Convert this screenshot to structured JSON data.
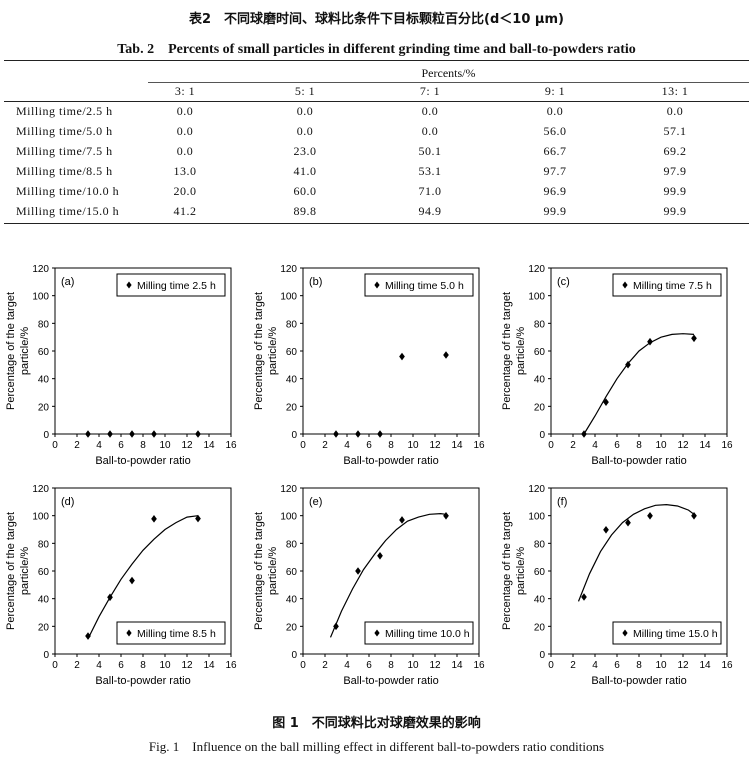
{
  "table": {
    "caption_cn": "表2　不同球磨时间、球料比条件下目标颗粒百分比(d＜10 μm)",
    "caption_en": "Tab. 2　Percents of small particles in different grinding time and ball-to-powders ratio",
    "group_header": "Percents/%",
    "columns": [
      "3: 1",
      "5: 1",
      "7: 1",
      "9: 1",
      "13: 1"
    ],
    "rows": [
      {
        "label": "Milling time/2.5 h",
        "values": [
          "0.0",
          "0.0",
          "0.0",
          "0.0",
          "0.0"
        ]
      },
      {
        "label": "Milling time/5.0 h",
        "values": [
          "0.0",
          "0.0",
          "0.0",
          "56.0",
          "57.1"
        ]
      },
      {
        "label": "Milling time/7.5 h",
        "values": [
          "0.0",
          "23.0",
          "50.1",
          "66.7",
          "69.2"
        ]
      },
      {
        "label": "Milling time/8.5 h",
        "values": [
          "13.0",
          "41.0",
          "53.1",
          "97.7",
          "97.9"
        ]
      },
      {
        "label": "Milling time/10.0 h",
        "values": [
          "20.0",
          "60.0",
          "71.0",
          "96.9",
          "99.9"
        ]
      },
      {
        "label": "Milling time/15.0 h",
        "values": [
          "41.2",
          "89.8",
          "94.9",
          "99.9",
          "99.9"
        ]
      }
    ]
  },
  "figure": {
    "caption_cn": "图 1　不同球料比对球磨效果的影响",
    "caption_en": "Fig. 1　Influence on the ball milling effect in different ball-to-powders ratio conditions"
  },
  "chart_data": [
    {
      "type": "scatter",
      "panel": "(a)",
      "legend": "Milling time  2.5 h",
      "legend_pos": "top-right",
      "xlabel": "Ball-to-powder ratio",
      "ylabel": "Percentage of the target particle/%",
      "xlim": [
        0,
        16
      ],
      "ylim": [
        0,
        120
      ],
      "xticks": [
        0,
        2,
        4,
        6,
        8,
        10,
        12,
        14,
        16
      ],
      "yticks": [
        0,
        20,
        40,
        60,
        80,
        100,
        120
      ],
      "x": [
        3,
        5,
        7,
        9,
        13
      ],
      "y": [
        0,
        0,
        0,
        0,
        0
      ],
      "trend": []
    },
    {
      "type": "scatter",
      "panel": "(b)",
      "legend": "Milling time  5.0 h",
      "legend_pos": "top-right",
      "xlabel": "Ball-to-powder ratio",
      "ylabel": "Percentage of the target particle/%",
      "xlim": [
        0,
        16
      ],
      "ylim": [
        0,
        120
      ],
      "xticks": [
        0,
        2,
        4,
        6,
        8,
        10,
        12,
        14,
        16
      ],
      "yticks": [
        0,
        20,
        40,
        60,
        80,
        100,
        120
      ],
      "x": [
        3,
        5,
        7,
        9,
        13
      ],
      "y": [
        0,
        0,
        0,
        56,
        57.1
      ],
      "trend": []
    },
    {
      "type": "scatter",
      "panel": "(c)",
      "legend": "Milling time  7.5 h",
      "legend_pos": "top-right",
      "xlabel": "Ball-to-powder ratio",
      "ylabel": "Percentage of the target particle/%",
      "xlim": [
        0,
        16
      ],
      "ylim": [
        0,
        120
      ],
      "xticks": [
        0,
        2,
        4,
        6,
        8,
        10,
        12,
        14,
        16
      ],
      "yticks": [
        0,
        20,
        40,
        60,
        80,
        100,
        120
      ],
      "x": [
        3,
        5,
        7,
        9,
        13
      ],
      "y": [
        0,
        23,
        50.1,
        66.7,
        69.2
      ],
      "trend": [
        [
          3,
          0
        ],
        [
          4,
          13
        ],
        [
          5,
          27
        ],
        [
          6,
          40
        ],
        [
          7,
          51
        ],
        [
          8,
          60
        ],
        [
          9,
          66
        ],
        [
          10,
          70
        ],
        [
          11,
          72
        ],
        [
          12,
          72.5
        ],
        [
          13,
          72
        ]
      ]
    },
    {
      "type": "scatter",
      "panel": "(d)",
      "legend": "Milling time  8.5 h",
      "legend_pos": "bottom-right",
      "xlabel": "Ball-to-powder ratio",
      "ylabel": "Percentage of the target particle/%",
      "xlim": [
        0,
        16
      ],
      "ylim": [
        0,
        120
      ],
      "xticks": [
        0,
        2,
        4,
        6,
        8,
        10,
        12,
        14,
        16
      ],
      "yticks": [
        0,
        20,
        40,
        60,
        80,
        100,
        120
      ],
      "x": [
        3,
        5,
        7,
        9,
        13
      ],
      "y": [
        13,
        41,
        53.1,
        97.7,
        97.9
      ],
      "trend": [
        [
          3,
          11
        ],
        [
          4,
          27
        ],
        [
          5,
          41
        ],
        [
          6,
          54
        ],
        [
          7,
          65
        ],
        [
          8,
          75
        ],
        [
          9,
          83
        ],
        [
          10,
          90
        ],
        [
          11,
          95
        ],
        [
          12,
          99
        ],
        [
          13,
          100
        ]
      ]
    },
    {
      "type": "scatter",
      "panel": "(e)",
      "legend": "Milling time  10.0 h",
      "legend_pos": "bottom-right",
      "xlabel": "Ball-to-powder ratio",
      "ylabel": "Percentage of the target particle/%",
      "xlim": [
        0,
        16
      ],
      "ylim": [
        0,
        120
      ],
      "xticks": [
        0,
        2,
        4,
        6,
        8,
        10,
        12,
        14,
        16
      ],
      "yticks": [
        0,
        20,
        40,
        60,
        80,
        100,
        120
      ],
      "x": [
        3,
        5,
        7,
        9,
        13
      ],
      "y": [
        20,
        60,
        71,
        96.9,
        99.9
      ],
      "trend": [
        [
          2.5,
          12
        ],
        [
          3.5,
          31
        ],
        [
          4.5,
          47
        ],
        [
          5.5,
          61
        ],
        [
          6.5,
          72
        ],
        [
          7.5,
          82
        ],
        [
          8.5,
          90
        ],
        [
          9.5,
          96
        ],
        [
          10.5,
          99
        ],
        [
          11.5,
          101
        ],
        [
          12.5,
          101.5
        ],
        [
          13,
          101
        ]
      ]
    },
    {
      "type": "scatter",
      "panel": "(f)",
      "legend": "Milling time  15.0 h",
      "legend_pos": "bottom-right",
      "xlabel": "Ball-to-powder ratio",
      "ylabel": "Percentage of the target particle/%",
      "xlim": [
        0,
        16
      ],
      "ylim": [
        0,
        120
      ],
      "xticks": [
        0,
        2,
        4,
        6,
        8,
        10,
        12,
        14,
        16
      ],
      "yticks": [
        0,
        20,
        40,
        60,
        80,
        100,
        120
      ],
      "x": [
        3,
        5,
        7,
        9,
        13
      ],
      "y": [
        41.2,
        89.8,
        94.9,
        99.9,
        99.9
      ],
      "trend": [
        [
          2.5,
          38
        ],
        [
          3.5,
          58
        ],
        [
          4.5,
          74
        ],
        [
          5.5,
          86
        ],
        [
          6.5,
          95
        ],
        [
          7.5,
          101
        ],
        [
          8.5,
          105
        ],
        [
          9.5,
          107.5
        ],
        [
          10.5,
          108
        ],
        [
          11.5,
          107
        ],
        [
          12.5,
          104
        ],
        [
          13,
          101
        ]
      ]
    }
  ]
}
